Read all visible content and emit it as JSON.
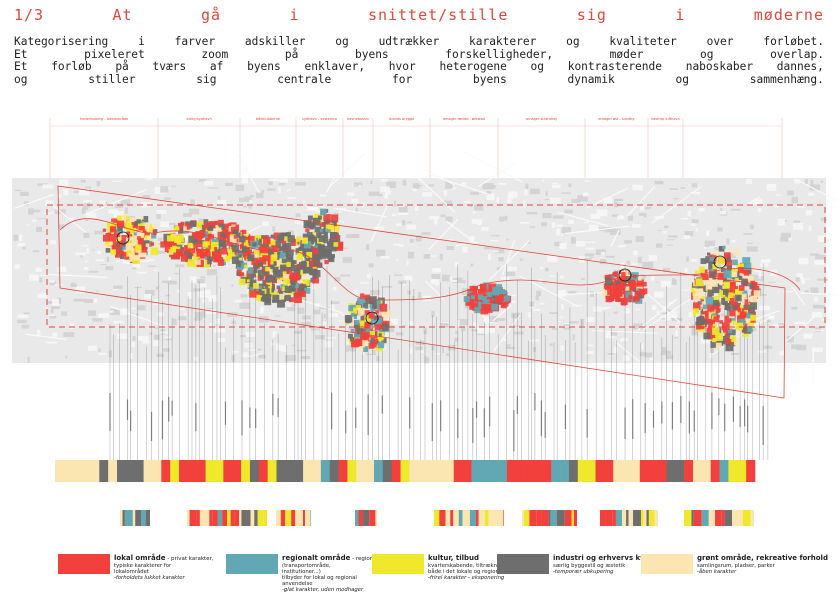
{
  "title_words": [
    "1/3",
    "At",
    "gå",
    "i",
    "snittet/stille",
    "sig",
    "i",
    "møderne"
  ],
  "intro_lines": [
    [
      "Kategorisering",
      "i",
      "farver",
      "adskiller",
      "og",
      "udtrækker",
      "karakterer",
      "og",
      "kvaliteter",
      "over",
      "forløbet."
    ],
    [
      "Et",
      "pixeleret",
      "zoom",
      "på",
      "byens",
      "forskelligheder,",
      "møder",
      "og",
      "overlap."
    ],
    [
      "Et",
      "forløb",
      "på",
      "tværs",
      "af",
      "byens",
      "enklaver,",
      "hvor",
      "heterogene",
      "og",
      "kontrasterende",
      "naboskaber",
      "dannes,"
    ],
    [
      "og",
      "stiller",
      "sig",
      "centrale",
      "for",
      "byens",
      "dynamik",
      "og",
      "sammenhæng."
    ]
  ],
  "colors": {
    "lokal": "#f2403c",
    "regional": "#62a8b4",
    "kultur": "#f0e82a",
    "industri": "#6e6e6e",
    "groen": "#fbe6b2",
    "accent": "#e0483a"
  },
  "legend": [
    {
      "key": "lokal",
      "title": "lokal område",
      "title_rest": " - privat karakter,",
      "lines": [
        "typiske   karakterer   for   lokalområdet"
      ],
      "italic": "-forholdets       lukket      karakter"
    },
    {
      "key": "regional",
      "title": "regionalt område",
      "title_rest": " - regional karakter,",
      "lines": [
        "(transportområde, institutioner...)",
        "tilbyder for lokal og regional anvendelse"
      ],
      "italic": "-glat karakter, uden modhager"
    },
    {
      "key": "kultur",
      "title": "kultur, tilbud",
      "title_rest": "",
      "lines": [
        "kvarterskabende, tiltrækning",
        "både i det lokale og regionale"
      ],
      "italic": "-frirel karakter - eksponering"
    },
    {
      "key": "industri",
      "title": "industri og erhvervs kvarter",
      "title_rest": "",
      "lines": [
        "særlig byggestil og æstetik"
      ],
      "italic": "-temporær ubkupering"
    },
    {
      "key": "groen",
      "title": "grønt område, rekreative forhold",
      "title_rest": "",
      "lines": [
        "samlingsrum, pladser, parker"
      ],
      "italic": "-åben karakter"
    }
  ],
  "zones": [
    {
      "head": "frederiksberg - lokalområde"
    },
    {
      "head": "valby/sydhavn"
    },
    {
      "head": "bådklubberne"
    },
    {
      "head": "sydhavn - vesterbro"
    },
    {
      "head": "havnebassin"
    },
    {
      "head": "islands brygge"
    },
    {
      "head": "amager fælled - ørestad"
    },
    {
      "head": "amager strandvej"
    },
    {
      "head": "amager øst - sundby"
    },
    {
      "head": "kastrup lufthavn"
    }
  ],
  "strip_sequence": [
    "groen",
    "groen",
    "groen",
    "groen",
    "groen",
    "industri",
    "groen",
    "industri",
    "industri",
    "industri",
    "groen",
    "groen",
    "lokal",
    "kultur",
    "lokal",
    "lokal",
    "lokal",
    "kultur",
    "kultur",
    "lokal",
    "lokal",
    "kultur",
    "industri",
    "lokal",
    "kultur",
    "industri",
    "industri",
    "industri",
    "groen",
    "groen",
    "regional",
    "industri",
    "lokal",
    "kultur",
    "groen",
    "groen",
    "regional",
    "industri",
    "lokal",
    "kultur",
    "groen",
    "groen",
    "groen",
    "groen",
    "groen",
    "lokal",
    "lokal",
    "regional",
    "regional",
    "regional",
    "regional",
    "lokal",
    "lokal",
    "lokal",
    "lokal",
    "lokal",
    "regional",
    "regional",
    "industri",
    "kultur",
    "kultur",
    "lokal",
    "lokal",
    "groen",
    "groen",
    "groen",
    "lokal",
    "lokal",
    "lokal",
    "industri",
    "industri",
    "lokal",
    "groen",
    "groen",
    "lokal",
    "regional",
    "kultur",
    "kultur",
    "lokal"
  ]
}
